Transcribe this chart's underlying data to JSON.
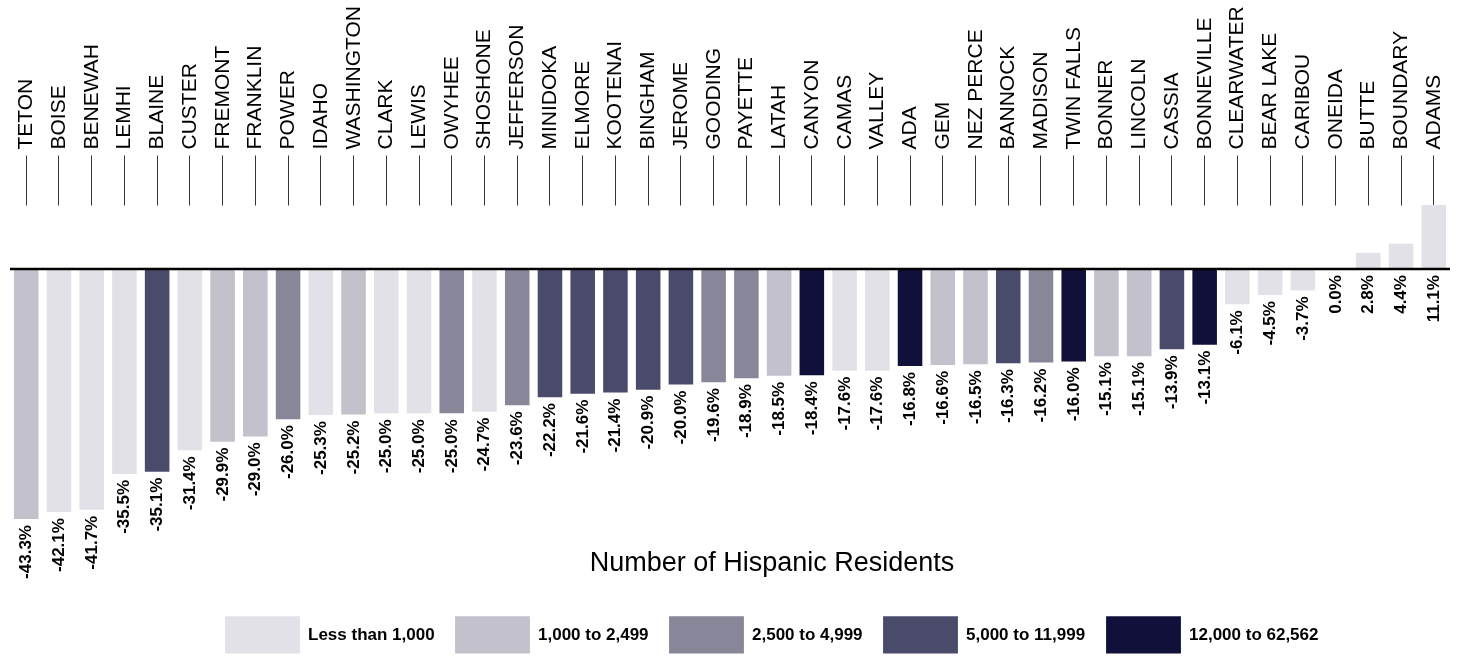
{
  "chart_data": {
    "type": "bar",
    "legend": "bottom",
    "legend_title": "Number of Hispanic Residents",
    "categories": [
      "TETON",
      "BOISE",
      "BENEWAH",
      "LEMHI",
      "BLAINE",
      "CUSTER",
      "FREMONT",
      "FRANKLIN",
      "POWER",
      "IDAHO",
      "WASHINGTON",
      "CLARK",
      "LEWIS",
      "OWYHEE",
      "SHOSHONE",
      "JEFFERSON",
      "MINIDOKA",
      "ELMORE",
      "KOOTENAI",
      "BINGHAM",
      "JEROME",
      "GOODING",
      "PAYETTE",
      "LATAH",
      "CANYON",
      "CAMAS",
      "VALLEY",
      "ADA",
      "GEM",
      "NEZ PERCE",
      "BANNOCK",
      "MADISON",
      "TWIN FALLS",
      "BONNER",
      "LINCOLN",
      "CASSIA",
      "BONNEVILLE",
      "CLEARWATER",
      "BEAR LAKE",
      "CARIBOU",
      "ONEIDA",
      "BUTTE",
      "BOUNDARY",
      "ADAMS"
    ],
    "series": [
      {
        "name": "Less than 1,000",
        "color": "#e2e1e7",
        "values": [
          null,
          -42.1,
          -41.7,
          -35.5,
          null,
          -31.4,
          null,
          null,
          null,
          -25.3,
          null,
          -25.0,
          -25.0,
          null,
          -24.7,
          null,
          null,
          null,
          null,
          null,
          null,
          null,
          null,
          null,
          null,
          -17.6,
          -17.6,
          null,
          null,
          null,
          null,
          null,
          null,
          null,
          null,
          null,
          null,
          -6.1,
          -4.5,
          -3.7,
          0.0,
          2.8,
          4.4,
          11.1
        ],
        "value_labels": [
          null,
          "-42.1%",
          "-41.7%",
          "-35.5%",
          null,
          "-31.4%",
          null,
          null,
          null,
          "-25.3%",
          null,
          "-25.0%",
          "-25.0%",
          null,
          "-24.7%",
          null,
          null,
          null,
          null,
          null,
          null,
          null,
          null,
          null,
          null,
          "-17.6%",
          "-17.6%",
          null,
          null,
          null,
          null,
          null,
          null,
          null,
          null,
          null,
          null,
          "-6.1%",
          "-4.5%",
          "-3.7%",
          "0.0%",
          "2.8%",
          "4.4%",
          "11.1%"
        ]
      },
      {
        "name": "1,000 to 2,499",
        "color": "#c2c1cc",
        "values": [
          -43.3,
          null,
          null,
          null,
          null,
          null,
          -29.9,
          -29.0,
          null,
          null,
          -25.2,
          null,
          null,
          null,
          null,
          null,
          null,
          null,
          null,
          null,
          null,
          null,
          null,
          -18.5,
          null,
          null,
          null,
          null,
          -16.6,
          -16.5,
          null,
          null,
          null,
          -15.1,
          -15.1,
          null,
          null,
          null,
          null,
          null,
          null,
          null,
          null,
          null
        ],
        "value_labels": [
          "-43.3%",
          null,
          null,
          null,
          null,
          null,
          "-29.9%",
          "-29.0%",
          null,
          null,
          "-25.2%",
          null,
          null,
          null,
          null,
          null,
          null,
          null,
          null,
          null,
          null,
          null,
          null,
          "-18.5%",
          null,
          null,
          null,
          null,
          "-16.6%",
          "-16.5%",
          null,
          null,
          null,
          "-15.1%",
          "-15.1%",
          null,
          null,
          null,
          null,
          null,
          null,
          null,
          null,
          null
        ]
      },
      {
        "name": "2,500 to 4,999",
        "color": "#878799",
        "values": [
          null,
          null,
          null,
          null,
          null,
          null,
          null,
          null,
          -26.0,
          null,
          null,
          null,
          null,
          -25.0,
          null,
          -23.6,
          null,
          null,
          null,
          null,
          null,
          -19.6,
          -18.9,
          null,
          null,
          null,
          null,
          null,
          null,
          null,
          null,
          -16.2,
          null,
          null,
          null,
          null,
          null,
          null,
          null,
          null,
          null,
          null,
          null,
          null
        ],
        "value_labels": [
          null,
          null,
          null,
          null,
          null,
          null,
          null,
          null,
          "-26.0%",
          null,
          null,
          null,
          null,
          "-25.0%",
          null,
          "-23.6%",
          null,
          null,
          null,
          null,
          null,
          "-19.6%",
          "-18.9%",
          null,
          null,
          null,
          null,
          null,
          null,
          null,
          null,
          "-16.2%",
          null,
          null,
          null,
          null,
          null,
          null,
          null,
          null,
          null,
          null,
          null,
          null
        ]
      },
      {
        "name": "5,000 to 11,999",
        "color": "#4a4a6a",
        "values": [
          null,
          null,
          null,
          null,
          -35.1,
          null,
          null,
          null,
          null,
          null,
          null,
          null,
          null,
          null,
          null,
          null,
          -22.2,
          -21.6,
          -21.4,
          -20.9,
          -20.0,
          null,
          null,
          null,
          null,
          null,
          null,
          null,
          null,
          null,
          -16.3,
          null,
          null,
          null,
          null,
          -13.9,
          null,
          null,
          null,
          null,
          null,
          null,
          null,
          null
        ],
        "value_labels": [
          null,
          null,
          null,
          null,
          "-35.1%",
          null,
          null,
          null,
          null,
          null,
          null,
          null,
          null,
          null,
          null,
          null,
          "-22.2%",
          "-21.6%",
          "-21.4%",
          "-20.9%",
          "-20.0%",
          null,
          null,
          null,
          null,
          null,
          null,
          null,
          null,
          null,
          "-16.3%",
          null,
          null,
          null,
          null,
          "-13.9%",
          null,
          null,
          null,
          null,
          null,
          null,
          null,
          null
        ]
      },
      {
        "name": "12,000 to 62,562",
        "color": "#10103a",
        "values": [
          null,
          null,
          null,
          null,
          null,
          null,
          null,
          null,
          null,
          null,
          null,
          null,
          null,
          null,
          null,
          null,
          null,
          null,
          null,
          null,
          null,
          null,
          null,
          null,
          -18.4,
          null,
          null,
          -16.8,
          null,
          null,
          null,
          null,
          -16.0,
          null,
          null,
          null,
          -13.1,
          null,
          null,
          null,
          null,
          null,
          null,
          null
        ],
        "value_labels": [
          null,
          null,
          null,
          null,
          null,
          null,
          null,
          null,
          null,
          null,
          null,
          null,
          null,
          null,
          null,
          null,
          null,
          null,
          null,
          null,
          null,
          null,
          null,
          null,
          "-18.4%",
          null,
          null,
          "-16.8%",
          null,
          null,
          null,
          null,
          "-16.0%",
          null,
          null,
          null,
          "-13.1%",
          null,
          null,
          null,
          null,
          null,
          null,
          null
        ]
      }
    ],
    "ref_lines": [
      {
        "axis": "y",
        "value": 0,
        "color": "#000000"
      }
    ]
  }
}
